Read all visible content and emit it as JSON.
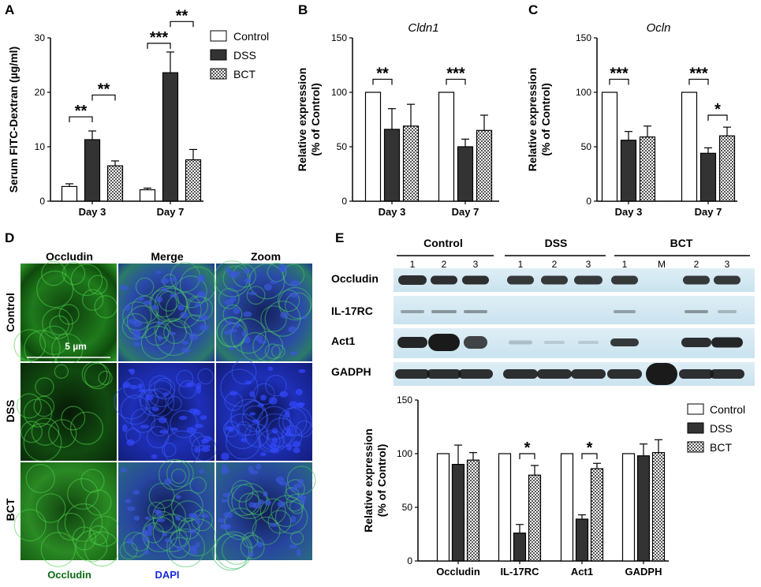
{
  "legend": [
    "Control",
    "DSS",
    "BCT"
  ],
  "colors": {
    "control": "#ffffff",
    "dss": "#333333",
    "bct": "#cfcfcf",
    "green": "#0a6b12",
    "blue": "#1a2ad8"
  },
  "panelA": {
    "letter": "A",
    "chart_data": {
      "type": "bar",
      "categories": [
        "Day 3",
        "Day 7"
      ],
      "series": [
        {
          "name": "Control",
          "values": [
            2.7,
            2.1
          ],
          "errors": [
            0.5,
            0.3
          ]
        },
        {
          "name": "DSS",
          "values": [
            11.3,
            23.6
          ],
          "errors": [
            1.6,
            3.8
          ]
        },
        {
          "name": "BCT",
          "values": [
            6.5,
            7.6
          ],
          "errors": [
            0.9,
            1.9
          ]
        }
      ],
      "ylabel": "Serum FITC-Dextran (µg/ml)",
      "ylim": [
        0,
        30
      ],
      "yticks": [
        0,
        10,
        20,
        30
      ],
      "significance": [
        {
          "cat": 0,
          "from": 0,
          "to": 1,
          "label": "**",
          "y": 15.5
        },
        {
          "cat": 0,
          "from": 1,
          "to": 2,
          "label": "**",
          "y": 19.5
        },
        {
          "cat": 1,
          "from": 0,
          "to": 1,
          "label": "***",
          "y": 29.0
        },
        {
          "cat": 1,
          "from": 1,
          "to": 2,
          "label": "**",
          "y": 33.0
        }
      ]
    }
  },
  "panelB": {
    "letter": "B",
    "chart_data": {
      "type": "bar",
      "title": "Cldn1",
      "categories": [
        "Day 3",
        "Day 7"
      ],
      "series": [
        {
          "name": "Control",
          "values": [
            100,
            100
          ],
          "errors": [
            0,
            0
          ]
        },
        {
          "name": "DSS",
          "values": [
            66,
            50
          ],
          "errors": [
            19,
            7
          ]
        },
        {
          "name": "BCT",
          "values": [
            69,
            65
          ],
          "errors": [
            20,
            14
          ]
        }
      ],
      "ylabel": "Relative expression\n(% of Control)",
      "ylim": [
        0,
        150
      ],
      "yticks": [
        0,
        50,
        100,
        150
      ],
      "significance": [
        {
          "cat": 0,
          "from": 0,
          "to": 1,
          "label": "**",
          "y": 112
        },
        {
          "cat": 1,
          "from": 0,
          "to": 1,
          "label": "***",
          "y": 112
        }
      ]
    }
  },
  "panelC": {
    "letter": "C",
    "chart_data": {
      "type": "bar",
      "title": "Ocln",
      "categories": [
        "Day 3",
        "Day 7"
      ],
      "series": [
        {
          "name": "Control",
          "values": [
            100,
            100
          ],
          "errors": [
            0,
            0
          ]
        },
        {
          "name": "DSS",
          "values": [
            56,
            44
          ],
          "errors": [
            8,
            5
          ]
        },
        {
          "name": "BCT",
          "values": [
            59,
            60
          ],
          "errors": [
            10,
            8
          ]
        }
      ],
      "ylabel": "Relative expression\n(% of Control)",
      "ylim": [
        0,
        150
      ],
      "yticks": [
        0,
        50,
        100,
        150
      ],
      "significance": [
        {
          "cat": 0,
          "from": 0,
          "to": 1,
          "label": "***",
          "y": 112
        },
        {
          "cat": 1,
          "from": 0,
          "to": 1,
          "label": "***",
          "y": 112
        },
        {
          "cat": 1,
          "from": 1,
          "to": 2,
          "label": "*",
          "y": 79
        }
      ]
    }
  },
  "panelD": {
    "letter": "D",
    "columns": [
      "Occludin",
      "Merge",
      "Zoom"
    ],
    "rows": [
      "Control",
      "DSS",
      "BCT"
    ],
    "scale_bar": "5 µm",
    "footer_green": "Occludin",
    "footer_blue": "DAPI"
  },
  "panelE": {
    "letter": "E",
    "groups": [
      "Control",
      "DSS",
      "BCT"
    ],
    "lanes": [
      "1",
      "2",
      "3",
      "1",
      "2",
      "3",
      "1",
      "M",
      "2",
      "3"
    ],
    "blots": [
      "Occludin",
      "IL-17RC",
      "Act1",
      "GADPH"
    ],
    "chart_data": {
      "type": "bar",
      "categories": [
        "Occludin",
        "IL-17RC",
        "Act1",
        "GADPH"
      ],
      "series": [
        {
          "name": "Control",
          "values": [
            100,
            100,
            100,
            100
          ],
          "errors": [
            0,
            0,
            0,
            0
          ]
        },
        {
          "name": "DSS",
          "values": [
            90,
            26,
            39,
            98
          ],
          "errors": [
            18,
            8,
            4,
            11
          ]
        },
        {
          "name": "BCT",
          "values": [
            94,
            80,
            86,
            101
          ],
          "errors": [
            7,
            9,
            5,
            12
          ]
        }
      ],
      "ylabel": "Relative expression\n(% of Control)",
      "ylim": [
        0,
        150
      ],
      "yticks": [
        0,
        50,
        100,
        150
      ],
      "significance": [
        {
          "cat": 1,
          "from": 1,
          "to": 2,
          "label": "*",
          "y": 100
        },
        {
          "cat": 2,
          "from": 1,
          "to": 2,
          "label": "*",
          "y": 100
        }
      ]
    }
  }
}
